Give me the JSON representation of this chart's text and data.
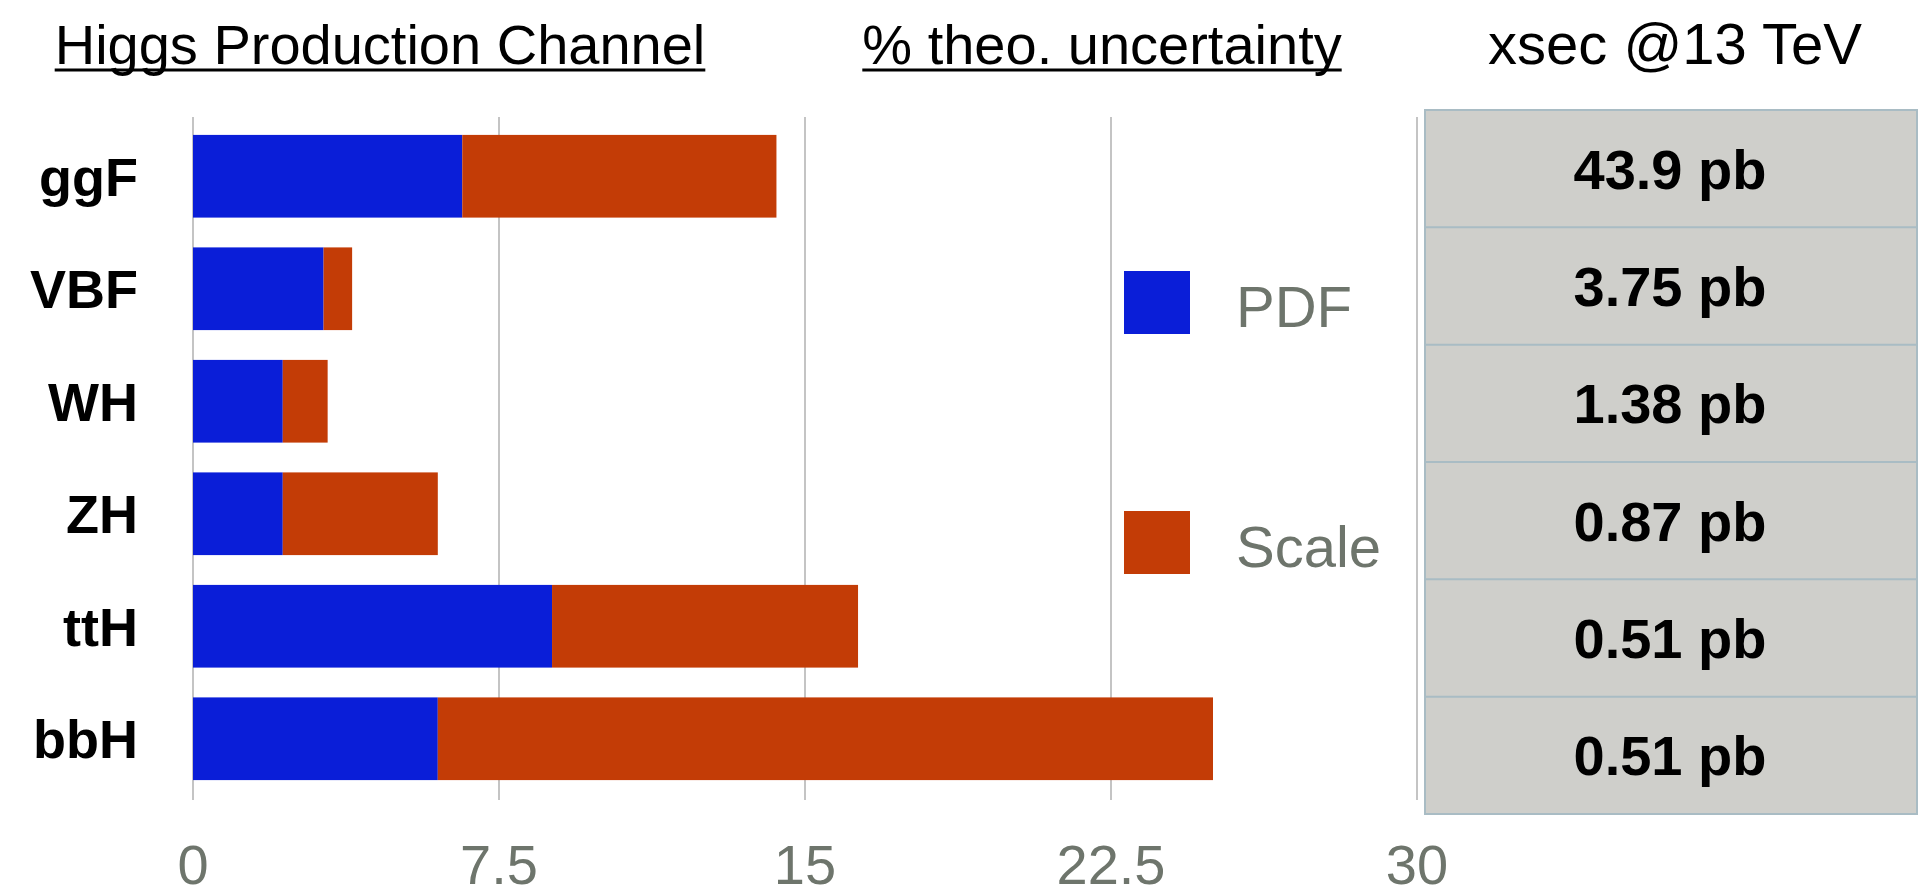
{
  "chart_data": [
    {
      "type": "bar",
      "orientation": "horizontal",
      "stacked": true,
      "xlabel": "% theo. uncertainty",
      "ylabel": "Higgs Production Channel",
      "categories": [
        "ggF",
        "VBF",
        "WH",
        "ZH",
        "ttH",
        "bbH"
      ],
      "series": [
        {
          "name": "PDF",
          "color": "#0a1ed8",
          "values": [
            6.6,
            3.2,
            2.2,
            2.2,
            8.8,
            6.0
          ]
        },
        {
          "name": "Scale",
          "color": "#c33c06",
          "values": [
            7.7,
            0.7,
            1.1,
            3.8,
            7.5,
            19.0
          ]
        }
      ],
      "xlim": [
        0,
        30
      ],
      "xticks": [
        0,
        7.5,
        15,
        22.5,
        30
      ],
      "grid": "x",
      "legend": "right"
    },
    {
      "type": "other",
      "title": "xsec @13 TeV",
      "annotations": [
        "43.9 pb",
        "3.75 pb",
        "1.38 pb",
        "0.87 pb",
        "0.51 pb",
        "0.51 pb"
      ]
    }
  ]
}
